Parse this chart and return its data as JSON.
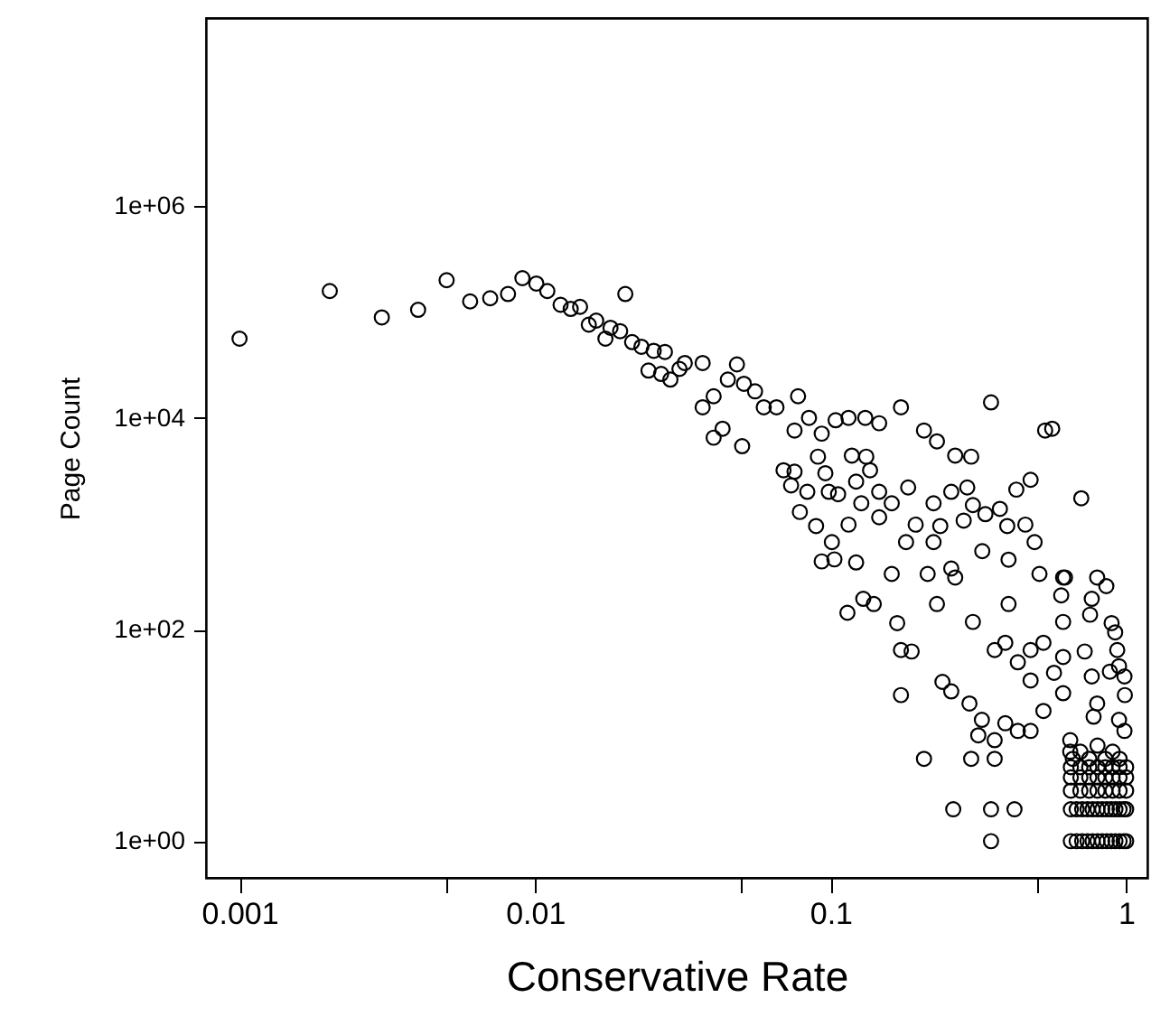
{
  "chart_data": {
    "type": "scatter",
    "xlabel": "Conservative Rate",
    "ylabel": "Page Count",
    "log": "xy",
    "grid": false,
    "marker": "circle",
    "xlim": [
      0.00077,
      1.18
    ],
    "ylim": [
      0.45,
      60000000
    ],
    "xticks": [
      0.001,
      {
        "value": 0.005,
        "label": null
      },
      0.01,
      {
        "value": 0.05,
        "label": null
      },
      0.1,
      {
        "value": 0.5,
        "label": null
      },
      1
    ],
    "yticks": [
      {
        "value": 1,
        "label": "1e+00"
      },
      {
        "value": 100,
        "label": "1e+02"
      },
      {
        "value": 10000,
        "label": "1e+04"
      },
      {
        "value": 1000000,
        "label": "1e+06"
      }
    ],
    "series": [
      {
        "color": "#000000",
        "x": [
          0.001,
          0.00202,
          0.00303,
          0.00402,
          0.00502,
          0.00603,
          0.00705,
          0.0081,
          0.00906,
          0.0101,
          0.011,
          0.0122,
          0.0132,
          0.0142,
          0.0202,
          0.0152,
          0.0161,
          0.0173,
          0.018,
          0.0194,
          0.0213,
          0.0229,
          0.0252,
          0.0275,
          0.0242,
          0.0267,
          0.0287,
          0.0308,
          0.0321,
          0.0369,
          0.0482,
          0.0449,
          0.0509,
          0.0555,
          0.0402,
          0.0369,
          0.0431,
          0.0402,
          0.0502,
          0.0594,
          0.0656,
          0.0776,
          0.0845,
          0.0755,
          0.0933,
          0.104,
          0.115,
          0.131,
          0.146,
          0.173,
          0.207,
          0.229,
          0.264,
          0.299,
          0.349,
          0.532,
          0.562,
          0.0693,
          0.0755,
          0.0735,
          0.0834,
          0.0787,
          0.0906,
          0.096,
          0.0986,
          0.106,
          0.118,
          0.132,
          0.136,
          0.122,
          0.127,
          0.146,
          0.161,
          0.183,
          0.223,
          0.256,
          0.29,
          0.303,
          0.425,
          0.475,
          0.705,
          0.0933,
          0.103,
          0.122,
          0.0893,
          0.115,
          0.146,
          0.194,
          0.235,
          0.282,
          0.334,
          0.374,
          0.456,
          0.396,
          0.509,
          0.621,
          0.798,
          0.857,
          0.161,
          0.213,
          0.256,
          0.129,
          0.168,
          0.173,
          0.188,
          0.173,
          0.207,
          0.299,
          0.359,
          0.26,
          0.349,
          0.419,
          0.349,
          0.239,
          0.256,
          0.295,
          0.325,
          0.316,
          0.359,
          0.39,
          0.43,
          0.475,
          0.525,
          0.603,
          0.612,
          0.765,
          0.755,
          0.893,
          0.918,
          0.933,
          0.946,
          0.987,
          0.99,
          0.881,
          0.724,
          0.765,
          0.798,
          0.776,
          0.946,
          0.987,
          0.647,
          0.647,
          0.475,
          0.39,
          0.525,
          0.57,
          0.475,
          0.359,
          0.43,
          0.612,
          0.612,
          0.612,
          0.114,
          0.14,
          0.229,
          0.303,
          0.4,
          0.264,
          0.4,
          0.101,
          0.18,
          0.223,
          0.326,
          0.49,
          0.65,
          0.68,
          0.71,
          0.74,
          0.77,
          0.8,
          0.83,
          0.86,
          0.89,
          0.92,
          0.95,
          0.98,
          1,
          0.65,
          0.68,
          0.71,
          0.74,
          0.77,
          0.8,
          0.83,
          0.86,
          0.89,
          0.92,
          0.95,
          0.98,
          1,
          0.65,
          0.7,
          0.75,
          0.8,
          0.85,
          0.9,
          0.95,
          1,
          0.65,
          0.7,
          0.75,
          0.8,
          0.85,
          0.9,
          0.95,
          1,
          0.65,
          0.7,
          0.75,
          0.8,
          0.85,
          0.9,
          0.95,
          1,
          0.66,
          0.75,
          0.85,
          0.95,
          0.7,
          0.9,
          0.8
        ],
        "values": [
          56000,
          158000,
          89000,
          105000,
          200000,
          126000,
          135000,
          148000,
          209000,
          186000,
          158000,
          117000,
          107000,
          112000,
          148000,
          76000,
          83000,
          56000,
          71000,
          66000,
          52000,
          47000,
          43000,
          42000,
          28000,
          26000,
          23000,
          29000,
          33000,
          33000,
          32000,
          23000,
          21000,
          17800,
          16000,
          12600,
          7900,
          6500,
          5400,
          12600,
          12600,
          16000,
          10000,
          7600,
          7100,
          9500,
          10000,
          10000,
          8900,
          12600,
          7600,
          6000,
          4400,
          4300,
          14000,
          7600,
          7900,
          3200,
          3100,
          2300,
          2000,
          1290,
          4300,
          3000,
          2000,
          1900,
          4400,
          4300,
          3200,
          2500,
          1560,
          2000,
          1560,
          2200,
          1560,
          2000,
          2200,
          1500,
          2100,
          2600,
          1740,
          440,
          460,
          430,
          950,
          980,
          1150,
          980,
          950,
          1070,
          1230,
          1380,
          980,
          950,
          335,
          310,
          310,
          257,
          335,
          335,
          377,
          195,
          115,
          64,
          62,
          24,
          6,
          6,
          6,
          2,
          2,
          2,
          1,
          32,
          26,
          20,
          14,
          10,
          9,
          13,
          11,
          11,
          17,
          210,
          310,
          195,
          138,
          115,
          94,
          64,
          45,
          36,
          24,
          40,
          62,
          36,
          20,
          15,
          14,
          11,
          9,
          7,
          64,
          75,
          75,
          39,
          33,
          64,
          49,
          118,
          55,
          25,
          144,
          174,
          174,
          118,
          174,
          310,
          457,
          670,
          670,
          670,
          550,
          670,
          1,
          1,
          1,
          1,
          1,
          1,
          1,
          1,
          1,
          1,
          1,
          1,
          1,
          2,
          2,
          2,
          2,
          2,
          2,
          2,
          2,
          2,
          2,
          2,
          2,
          2,
          3,
          3,
          3,
          3,
          3,
          3,
          3,
          3,
          4,
          4,
          4,
          4,
          4,
          4,
          4,
          4,
          5,
          5,
          5,
          5,
          5,
          5,
          5,
          5,
          6,
          6,
          6,
          6,
          7,
          7,
          8
        ]
      }
    ]
  }
}
